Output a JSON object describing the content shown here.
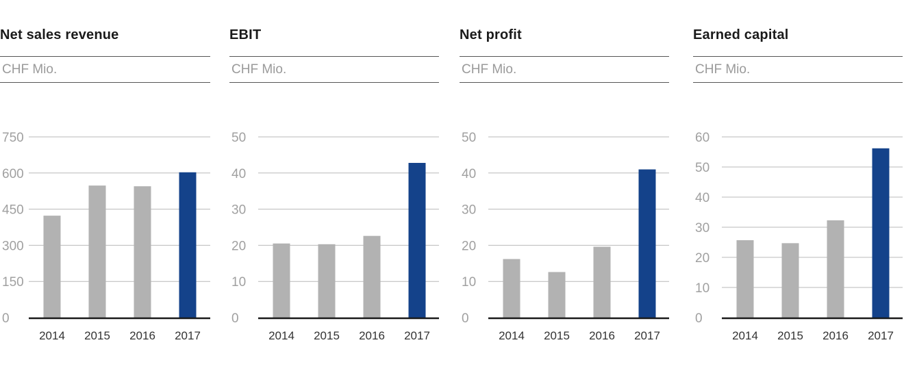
{
  "colors": {
    "bar_default": "#b2b2b2",
    "bar_highlight": "#14428a",
    "gridline": "#b8b8b8",
    "axis": "#1a1a1a",
    "tick_text": "#a0a0a0",
    "x_tick_text": "#333333"
  },
  "chart_data": [
    {
      "type": "bar",
      "title": "Net sales revenue",
      "subtitle": "CHF Mio.",
      "categories": [
        "2014",
        "2015",
        "2016",
        "2017"
      ],
      "values": [
        423,
        548,
        545,
        603
      ],
      "highlight": "2017",
      "ylim": [
        0,
        750
      ],
      "yticks": [
        "0",
        "150",
        "300",
        "450",
        "600",
        "750"
      ],
      "grid": true
    },
    {
      "type": "bar",
      "title": "EBIT",
      "subtitle": "CHF Mio.",
      "categories": [
        "2014",
        "2015",
        "2016",
        "2017"
      ],
      "values": [
        20.5,
        20.3,
        22.6,
        42.8
      ],
      "highlight": "2017",
      "ylim": [
        0,
        50
      ],
      "yticks": [
        "0",
        "10",
        "20",
        "30",
        "40",
        "50"
      ],
      "grid": true
    },
    {
      "type": "bar",
      "title": "Net profit",
      "subtitle": "CHF Mio.",
      "categories": [
        "2014",
        "2015",
        "2016",
        "2017"
      ],
      "values": [
        16.2,
        12.6,
        19.6,
        41.0
      ],
      "highlight": "2017",
      "ylim": [
        0,
        50
      ],
      "yticks": [
        "0",
        "10",
        "20",
        "30",
        "40",
        "50"
      ],
      "grid": true
    },
    {
      "type": "bar",
      "title": "Earned capital",
      "subtitle": "CHF Mio.",
      "categories": [
        "2014",
        "2015",
        "2016",
        "2017"
      ],
      "values": [
        25.7,
        24.7,
        32.3,
        56.2
      ],
      "highlight": "2017",
      "ylim": [
        0,
        60
      ],
      "yticks": [
        "0",
        "10",
        "20",
        "30",
        "40",
        "50",
        "60"
      ],
      "grid": true
    }
  ]
}
